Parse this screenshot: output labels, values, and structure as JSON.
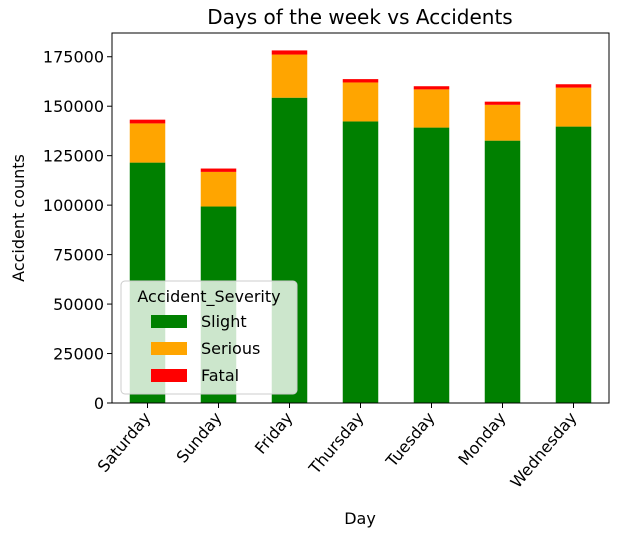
{
  "chart_data": {
    "type": "bar",
    "stacked": true,
    "title": "Days of the week vs Accidents",
    "xlabel": "Day",
    "ylabel": "Accident counts",
    "categories": [
      "Saturday",
      "Sunday",
      "Friday",
      "Thursday",
      "Tuesday",
      "Monday",
      "Wednesday"
    ],
    "series": [
      {
        "name": "Slight",
        "color": "#008000",
        "values": [
          121500,
          99300,
          154300,
          142300,
          139200,
          132600,
          139700
        ]
      },
      {
        "name": "Serious",
        "color": "#ffa500",
        "values": [
          19800,
          17500,
          21800,
          19700,
          19300,
          18100,
          19700
        ]
      },
      {
        "name": "Fatal",
        "color": "#ff0000",
        "values": [
          1900,
          1700,
          2100,
          1700,
          1600,
          1600,
          1700
        ]
      }
    ],
    "ylim": [
      0,
      187000
    ],
    "yticks": [
      0,
      25000,
      50000,
      75000,
      100000,
      125000,
      150000,
      175000
    ],
    "legend": {
      "title": "Accident_Severity",
      "position": "lower-left"
    },
    "grid": false
  }
}
